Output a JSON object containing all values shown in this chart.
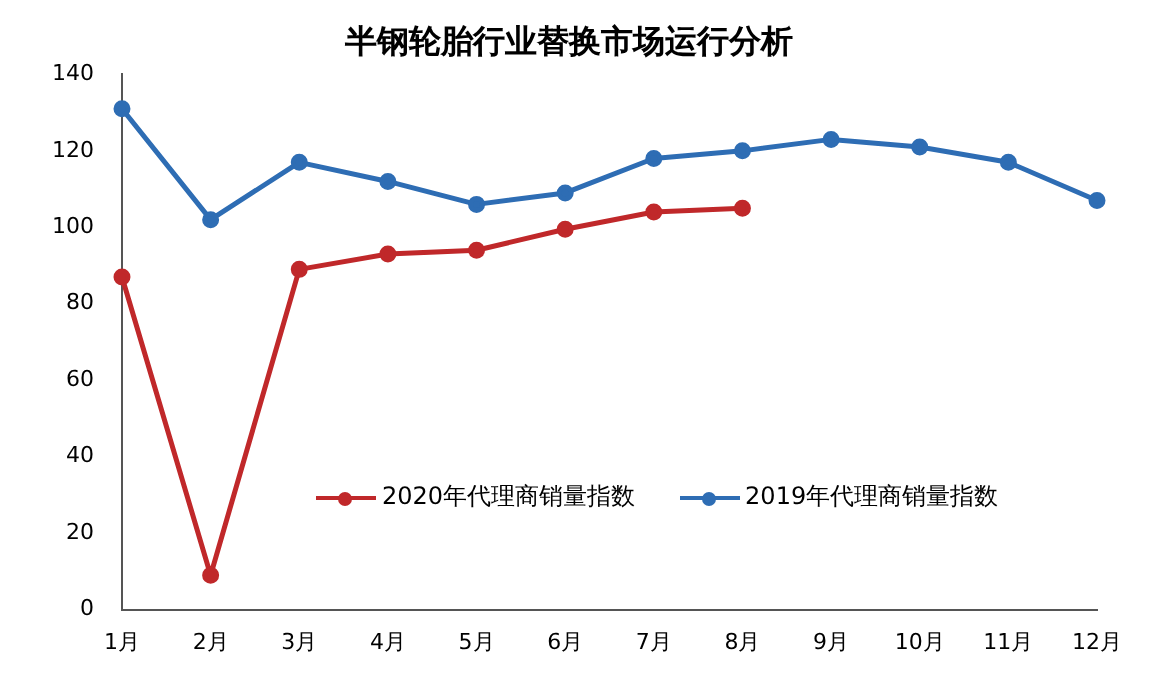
{
  "chart_data": {
    "type": "line",
    "title": "半钢轮胎行业替换市场运行分析",
    "categories": [
      "1月",
      "2月",
      "3月",
      "4月",
      "5月",
      "6月",
      "7月",
      "8月",
      "9月",
      "10月",
      "11月",
      "12月"
    ],
    "series": [
      {
        "name": "2020年代理商销量指数",
        "color": "#c0282a",
        "values": [
          87,
          9,
          89,
          93,
          94,
          99.5,
          104,
          105,
          null,
          null,
          null,
          null
        ]
      },
      {
        "name": "2019年代理商销量指数",
        "color": "#2e6db4",
        "values": [
          131,
          102,
          117,
          112,
          106,
          109,
          118,
          120,
          123,
          121,
          117,
          107
        ]
      }
    ],
    "ylim": [
      0,
      140
    ],
    "yticks": [
      0,
      20,
      40,
      60,
      80,
      100,
      120,
      140
    ],
    "grid": false,
    "legend": "bottom",
    "marker": "circle",
    "line_style": "solid"
  }
}
